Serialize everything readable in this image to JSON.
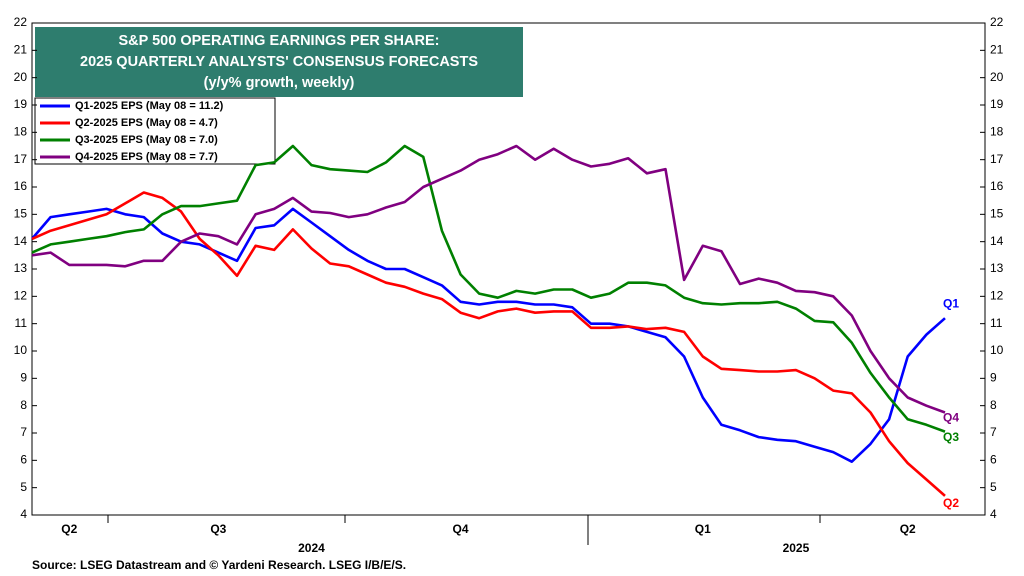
{
  "chart_data": {
    "type": "line",
    "title_lines": [
      "S&P 500 OPERATING EARNINGS PER SHARE:",
      "2025 QUARTERLY ANALYSTS' CONSENSUS FORECASTS",
      "(y/y% growth, weekly)"
    ],
    "source": "Source: LSEG Datastream and © Yardeni Research. LSEG I/B/E/S.",
    "categories": [
      null,
      null,
      "Q2",
      null,
      null,
      null,
      null,
      null,
      null,
      null,
      "Q3",
      null,
      null,
      null,
      null,
      null,
      null,
      null,
      null,
      null,
      null,
      null,
      null,
      "Q4",
      null,
      null,
      null,
      null,
      null,
      null,
      null,
      null,
      null,
      null,
      null,
      null,
      "Q1",
      null,
      null,
      null,
      null,
      null,
      null,
      null,
      null,
      null,
      null,
      "Q2",
      null,
      null
    ],
    "year_labels": [
      null,
      null,
      null,
      null,
      null,
      null,
      null,
      null,
      null,
      null,
      null,
      null,
      null,
      null,
      null,
      "2024",
      null,
      null,
      null,
      null,
      null,
      null,
      null,
      null,
      null,
      null,
      null,
      null,
      null,
      null,
      null,
      null,
      null,
      null,
      null,
      null,
      null,
      null,
      null,
      null,
      null,
      "2025",
      null,
      null,
      null,
      null,
      null,
      null,
      null,
      null
    ],
    "series": [
      {
        "name": "Q1-2025 EPS (May 08 = 11.2)",
        "label": "Q1",
        "color": "#0000ff",
        "values": [
          14.1,
          14.9,
          15.0,
          15.1,
          15.2,
          15.0,
          14.9,
          14.3,
          14.0,
          13.9,
          13.6,
          13.3,
          14.5,
          14.6,
          15.2,
          14.7,
          14.2,
          13.7,
          13.3,
          13.0,
          13.0,
          12.7,
          12.4,
          11.8,
          11.7,
          11.8,
          11.8,
          11.7,
          11.7,
          11.6,
          11.0,
          11.0,
          10.9,
          10.7,
          10.5,
          9.8,
          8.3,
          7.3,
          7.1,
          6.85,
          6.75,
          6.7,
          6.5,
          6.3,
          5.95,
          6.6,
          7.5,
          9.8,
          10.6,
          11.2
        ]
      },
      {
        "name": "Q2-2025 EPS (May 08 = 4.7)",
        "label": "Q2",
        "color": "#ff0000",
        "values": [
          14.1,
          14.4,
          14.6,
          14.8,
          15.0,
          15.4,
          15.8,
          15.6,
          15.1,
          14.1,
          13.5,
          12.75,
          13.85,
          13.7,
          14.45,
          13.75,
          13.2,
          13.1,
          12.8,
          12.5,
          12.35,
          12.1,
          11.9,
          11.4,
          11.2,
          11.45,
          11.55,
          11.4,
          11.45,
          11.45,
          10.85,
          10.85,
          10.9,
          10.8,
          10.85,
          10.7,
          9.8,
          9.35,
          9.3,
          9.25,
          9.25,
          9.3,
          9.0,
          8.55,
          8.45,
          7.75,
          6.7,
          5.9,
          5.3,
          4.7
        ]
      },
      {
        "name": "Q3-2025 EPS (May 08 = 7.0)",
        "label": "Q3",
        "color": "#008000",
        "values": [
          13.6,
          13.9,
          14.0,
          14.1,
          14.2,
          14.35,
          14.45,
          15.0,
          15.3,
          15.3,
          15.4,
          15.5,
          16.8,
          16.9,
          17.5,
          16.8,
          16.65,
          16.6,
          16.55,
          16.9,
          17.5,
          17.1,
          14.4,
          12.8,
          12.1,
          11.95,
          12.2,
          12.1,
          12.25,
          12.25,
          11.95,
          12.1,
          12.5,
          12.5,
          12.4,
          11.95,
          11.75,
          11.7,
          11.75,
          11.75,
          11.8,
          11.55,
          11.1,
          11.05,
          10.3,
          9.2,
          8.3,
          7.5,
          7.3,
          7.05
        ]
      },
      {
        "name": "Q4-2025 EPS (May 08 = 7.7)",
        "label": "Q4",
        "color": "#800080",
        "values": [
          13.5,
          13.6,
          13.15,
          13.15,
          13.15,
          13.1,
          13.3,
          13.3,
          14.0,
          14.3,
          14.2,
          13.9,
          15.0,
          15.2,
          15.6,
          15.1,
          15.05,
          14.9,
          15.0,
          15.25,
          15.45,
          16.0,
          16.3,
          16.6,
          17.0,
          17.2,
          17.5,
          17.0,
          17.4,
          17.0,
          16.75,
          16.85,
          17.05,
          16.5,
          16.65,
          12.6,
          13.85,
          13.65,
          12.45,
          12.65,
          12.5,
          12.2,
          12.15,
          12.0,
          11.3,
          10.0,
          9.0,
          8.3,
          8.0,
          7.75
        ]
      }
    ],
    "ylim": [
      4,
      22
    ],
    "yticks": [
      4,
      5,
      6,
      7,
      8,
      9,
      10,
      11,
      12,
      13,
      14,
      15,
      16,
      17,
      18,
      19,
      20,
      21,
      22
    ],
    "grid": false
  }
}
